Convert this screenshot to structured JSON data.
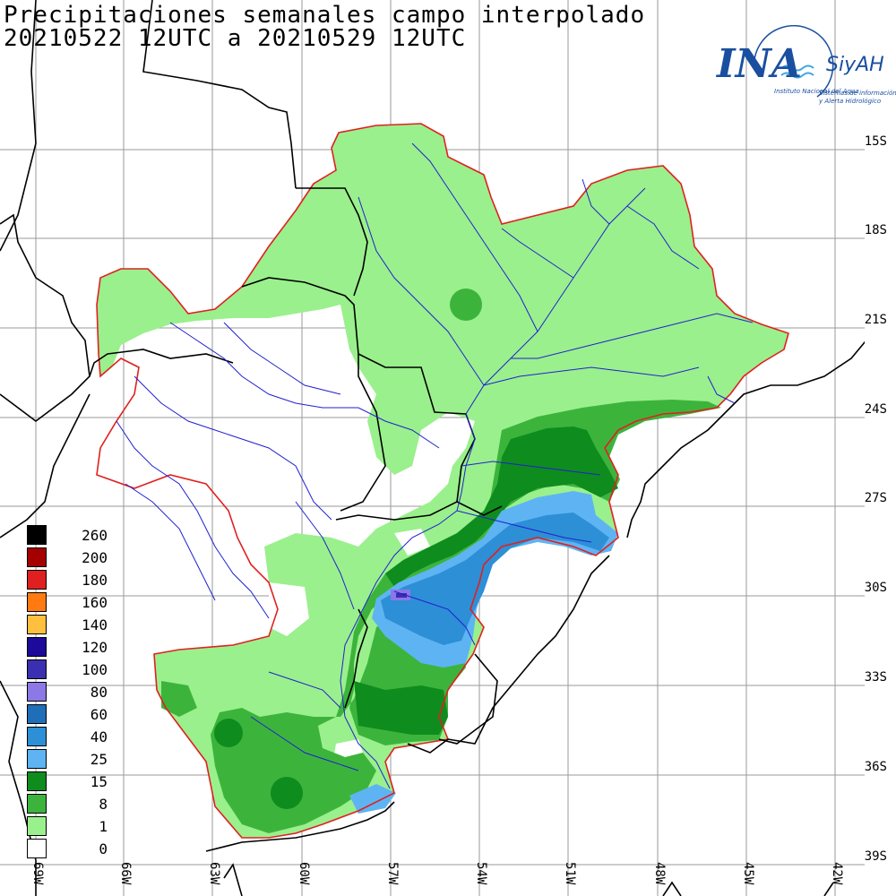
{
  "title_line1": "Precipitaciones semanales campo interpolado",
  "title_line2": "20210522 12UTC a 20210529 12UTC",
  "logo": {
    "ina": "INA",
    "siyah": "SiyAH",
    "institute": "Instituto Nacional del Agua",
    "sub1": "Sistemas de información",
    "sub2": "y Alerta Hidrológico"
  },
  "lat_labels": [
    "15S",
    "18S",
    "21S",
    "24S",
    "27S",
    "30S",
    "33S",
    "36S",
    "39S"
  ],
  "lon_labels": [
    "69W",
    "66W",
    "63W",
    "60W",
    "57W",
    "54W",
    "51W",
    "48W",
    "45W",
    "42W"
  ],
  "legend": [
    {
      "label": "260",
      "color": "#000000"
    },
    {
      "label": "200",
      "color": "#a50000"
    },
    {
      "label": "180",
      "color": "#e02020"
    },
    {
      "label": "160",
      "color": "#ff7a10"
    },
    {
      "label": "140",
      "color": "#ffc040"
    },
    {
      "label": "120",
      "color": "#1c0a9a"
    },
    {
      "label": "100",
      "color": "#3a2fb0"
    },
    {
      "label": "80",
      "color": "#8c78e6"
    },
    {
      "label": "60",
      "color": "#1f6fb8"
    },
    {
      "label": "40",
      "color": "#2d8fd6"
    },
    {
      "label": "25",
      "color": "#5eb4f2"
    },
    {
      "label": "15",
      "color": "#0f8c1e"
    },
    {
      "label": "8",
      "color": "#3cb43c"
    },
    {
      "label": "1",
      "color": "#9af08c"
    },
    {
      "label": "0",
      "color": "#ffffff"
    }
  ]
}
